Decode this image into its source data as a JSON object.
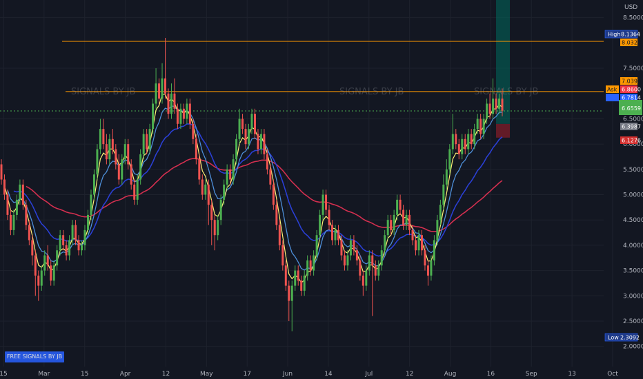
{
  "currency": "USD",
  "watermark": "SIGNALS BY JB",
  "free_signals_label": "FREE SIGNALS BY JB",
  "price_badges": {
    "high_label": "High",
    "high_value": "8.1364",
    "low_label": "Low",
    "low_value": "2.3092",
    "ask_label": "Ask",
    "ask_value": "6.8600",
    "bid_value": "6.7814",
    "last_value": "6.6559",
    "level_1": "8.0323",
    "level_2": "7.0398",
    "stop_value": "6.1276",
    "entry_value": "6.3987"
  },
  "colors": {
    "background": "#131722",
    "grid": "#1e222d",
    "bull": "#26a69a",
    "bull_green": "#4caf50",
    "bear": "#ef5350",
    "ema_fast": "#fff176",
    "ema_mid": "#4e8fd9",
    "ema_slow": "#2a3fd4",
    "ema_long": "#d32f4f",
    "hline": "#ff9800",
    "last_price": "#4caf50",
    "target_zone": "#00695c",
    "stop_zone": "#7f1d2a"
  },
  "chart_data": {
    "type": "candlestick",
    "y_unit": "USD",
    "ylim": [
      1.6,
      8.85
    ],
    "y_ticks": [
      2.0,
      2.5,
      3.0,
      3.5,
      4.0,
      4.5,
      5.0,
      5.5,
      6.0,
      6.5,
      7.5,
      8.5
    ],
    "x_tick_labels": [
      "15",
      "Mar",
      "15",
      "Apr",
      "12",
      "May",
      "17",
      "Jun",
      "14",
      "Jul",
      "12",
      "Aug",
      "16",
      "Sep",
      "13",
      "Oct"
    ],
    "horizontal_lines": [
      8.0323,
      7.0398
    ],
    "last_price": 6.6559,
    "high": 8.1364,
    "low": 2.3092,
    "position": {
      "entry": 6.3987,
      "target": 8.85,
      "stop": 6.1276
    },
    "candles": [
      [
        5.6,
        5.3,
        5.7,
        5.2
      ],
      [
        5.3,
        5.0,
        5.4,
        4.9
      ],
      [
        5.0,
        4.6,
        5.1,
        4.5
      ],
      [
        4.6,
        4.3,
        4.7,
        4.2
      ],
      [
        4.3,
        4.6,
        4.7,
        4.2
      ],
      [
        4.6,
        4.9,
        5.0,
        4.5
      ],
      [
        4.9,
        5.2,
        5.3,
        4.8
      ],
      [
        5.2,
        4.8,
        5.3,
        4.7
      ],
      [
        4.8,
        4.4,
        4.9,
        4.3
      ],
      [
        4.4,
        4.1,
        4.5,
        4.0
      ],
      [
        4.1,
        3.8,
        4.2,
        3.6
      ],
      [
        3.8,
        3.4,
        3.9,
        3.0
      ],
      [
        3.4,
        3.2,
        3.5,
        2.9
      ],
      [
        3.2,
        3.5,
        3.6,
        3.1
      ],
      [
        3.5,
        3.8,
        3.9,
        3.4
      ],
      [
        3.8,
        3.6,
        4.0,
        3.5
      ],
      [
        3.6,
        3.3,
        3.7,
        3.2
      ],
      [
        3.3,
        3.6,
        3.7,
        3.2
      ],
      [
        3.6,
        3.9,
        4.0,
        3.5
      ],
      [
        3.9,
        4.2,
        4.3,
        3.8
      ],
      [
        4.2,
        4.0,
        4.3,
        3.9
      ],
      [
        4.0,
        3.8,
        4.1,
        3.7
      ],
      [
        3.8,
        4.1,
        4.2,
        3.7
      ],
      [
        4.1,
        4.4,
        4.5,
        4.0
      ],
      [
        4.4,
        4.1,
        4.5,
        4.0
      ],
      [
        4.1,
        3.9,
        4.2,
        3.8
      ],
      [
        3.9,
        4.0,
        4.1,
        3.8
      ],
      [
        4.0,
        4.3,
        4.4,
        3.9
      ],
      [
        4.3,
        4.6,
        4.7,
        4.2
      ],
      [
        4.6,
        5.0,
        5.1,
        4.5
      ],
      [
        5.0,
        5.4,
        5.5,
        4.9
      ],
      [
        5.4,
        5.9,
        6.0,
        5.3
      ],
      [
        5.9,
        6.3,
        6.5,
        5.8
      ],
      [
        6.3,
        6.0,
        6.5,
        5.9
      ],
      [
        6.0,
        5.7,
        6.2,
        5.6
      ],
      [
        5.7,
        6.1,
        6.2,
        5.6
      ],
      [
        6.1,
        5.9,
        6.3,
        5.8
      ],
      [
        5.9,
        5.6,
        6.0,
        5.5
      ],
      [
        5.6,
        5.3,
        5.8,
        5.2
      ],
      [
        5.3,
        5.7,
        5.8,
        5.2
      ],
      [
        5.7,
        6.0,
        6.1,
        5.6
      ],
      [
        6.0,
        5.6,
        6.1,
        5.5
      ],
      [
        5.6,
        5.2,
        5.7,
        5.1
      ],
      [
        5.2,
        4.9,
        5.3,
        4.8
      ],
      [
        4.9,
        5.3,
        5.4,
        4.8
      ],
      [
        5.3,
        5.8,
        5.9,
        5.2
      ],
      [
        5.8,
        6.2,
        6.3,
        5.7
      ],
      [
        6.2,
        5.9,
        6.3,
        5.8
      ],
      [
        5.9,
        6.3,
        6.4,
        5.8
      ],
      [
        6.3,
        6.8,
        6.9,
        6.2
      ],
      [
        6.8,
        7.2,
        7.5,
        6.7
      ],
      [
        7.2,
        6.9,
        7.3,
        6.8
      ],
      [
        6.9,
        7.3,
        7.6,
        6.8
      ],
      [
        7.3,
        7.0,
        8.1,
        6.9
      ],
      [
        7.0,
        6.6,
        7.1,
        6.5
      ],
      [
        6.6,
        7.0,
        7.2,
        6.5
      ],
      [
        7.0,
        6.7,
        7.3,
        6.6
      ],
      [
        6.7,
        6.4,
        6.8,
        6.3
      ],
      [
        6.4,
        6.7,
        6.8,
        6.3
      ],
      [
        6.7,
        6.5,
        6.8,
        6.4
      ],
      [
        6.5,
        6.8,
        6.9,
        6.4
      ],
      [
        6.8,
        6.4,
        6.9,
        6.3
      ],
      [
        6.4,
        6.1,
        6.5,
        6.0
      ],
      [
        6.1,
        5.7,
        6.2,
        5.6
      ],
      [
        5.7,
        5.3,
        5.8,
        5.2
      ],
      [
        5.3,
        5.0,
        5.4,
        4.9
      ],
      [
        5.0,
        5.2,
        5.3,
        4.9
      ],
      [
        5.2,
        4.8,
        5.3,
        4.4
      ],
      [
        4.8,
        4.5,
        4.9,
        4.0
      ],
      [
        4.5,
        4.2,
        4.6,
        3.9
      ],
      [
        4.2,
        4.5,
        4.6,
        4.1
      ],
      [
        4.5,
        4.9,
        5.0,
        4.4
      ],
      [
        4.9,
        5.2,
        5.3,
        4.8
      ],
      [
        5.2,
        5.5,
        5.6,
        5.1
      ],
      [
        5.5,
        5.3,
        5.6,
        5.2
      ],
      [
        5.3,
        5.7,
        5.8,
        5.2
      ],
      [
        5.7,
        6.1,
        6.2,
        5.6
      ],
      [
        6.1,
        6.5,
        6.7,
        6.0
      ],
      [
        6.5,
        6.3,
        6.6,
        6.2
      ],
      [
        6.3,
        6.0,
        6.4,
        5.9
      ],
      [
        6.0,
        6.3,
        6.4,
        5.9
      ],
      [
        6.3,
        6.6,
        6.7,
        6.2
      ],
      [
        6.6,
        6.2,
        6.7,
        6.1
      ],
      [
        6.2,
        5.9,
        6.3,
        5.8
      ],
      [
        5.9,
        6.2,
        6.3,
        5.8
      ],
      [
        6.2,
        5.8,
        6.3,
        5.7
      ],
      [
        5.8,
        5.5,
        5.9,
        5.4
      ],
      [
        5.5,
        5.2,
        5.6,
        5.1
      ],
      [
        5.2,
        4.8,
        5.3,
        4.7
      ],
      [
        4.8,
        4.4,
        4.9,
        4.3
      ],
      [
        4.4,
        4.0,
        4.5,
        3.9
      ],
      [
        4.0,
        3.6,
        4.1,
        3.5
      ],
      [
        3.6,
        3.2,
        3.7,
        3.1
      ],
      [
        3.2,
        2.9,
        3.3,
        2.5
      ],
      [
        2.9,
        3.2,
        3.3,
        2.3
      ],
      [
        3.2,
        3.5,
        3.6,
        3.1
      ],
      [
        3.5,
        3.3,
        3.6,
        3.2
      ],
      [
        3.3,
        3.1,
        3.4,
        3.0
      ],
      [
        3.1,
        3.4,
        3.5,
        3.0
      ],
      [
        3.4,
        3.7,
        3.8,
        3.3
      ],
      [
        3.7,
        3.5,
        3.8,
        3.4
      ],
      [
        3.5,
        3.8,
        3.9,
        3.4
      ],
      [
        3.8,
        4.2,
        4.3,
        3.7
      ],
      [
        4.2,
        4.6,
        4.7,
        4.1
      ],
      [
        4.6,
        5.0,
        5.1,
        4.5
      ],
      [
        5.0,
        4.7,
        5.1,
        4.6
      ],
      [
        4.7,
        4.4,
        4.8,
        4.3
      ],
      [
        4.4,
        4.1,
        4.5,
        4.0
      ],
      [
        4.1,
        4.3,
        4.4,
        4.0
      ],
      [
        4.3,
        4.1,
        4.4,
        4.0
      ],
      [
        4.1,
        3.8,
        4.2,
        3.7
      ],
      [
        3.8,
        3.6,
        3.9,
        3.5
      ],
      [
        3.6,
        3.8,
        3.9,
        3.5
      ],
      [
        3.8,
        4.1,
        4.2,
        3.7
      ],
      [
        4.1,
        3.9,
        4.2,
        3.8
      ],
      [
        3.9,
        3.7,
        4.0,
        3.6
      ],
      [
        3.7,
        3.4,
        3.8,
        3.3
      ],
      [
        3.4,
        3.2,
        3.5,
        3.0
      ],
      [
        3.2,
        3.5,
        3.6,
        3.1
      ],
      [
        3.5,
        3.8,
        3.9,
        3.4
      ],
      [
        3.8,
        3.6,
        3.9,
        2.6
      ],
      [
        3.6,
        3.4,
        3.7,
        3.3
      ],
      [
        3.4,
        3.6,
        3.7,
        3.3
      ],
      [
        3.6,
        3.9,
        4.0,
        3.5
      ],
      [
        3.9,
        4.2,
        4.3,
        3.8
      ],
      [
        4.2,
        4.5,
        4.6,
        4.1
      ],
      [
        4.5,
        4.3,
        4.6,
        4.2
      ],
      [
        4.3,
        4.6,
        4.7,
        4.2
      ],
      [
        4.6,
        4.9,
        5.0,
        4.5
      ],
      [
        4.9,
        4.7,
        5.0,
        4.6
      ],
      [
        4.7,
        4.4,
        4.8,
        4.3
      ],
      [
        4.4,
        4.6,
        4.7,
        4.3
      ],
      [
        4.6,
        4.3,
        4.7,
        4.2
      ],
      [
        4.3,
        4.1,
        4.4,
        4.0
      ],
      [
        4.1,
        3.9,
        4.2,
        3.8
      ],
      [
        3.9,
        4.2,
        4.3,
        3.8
      ],
      [
        4.2,
        3.9,
        4.3,
        3.8
      ],
      [
        3.9,
        3.6,
        4.0,
        3.5
      ],
      [
        3.6,
        3.4,
        3.7,
        3.2
      ],
      [
        3.4,
        3.7,
        3.8,
        3.3
      ],
      [
        3.7,
        4.1,
        4.2,
        3.6
      ],
      [
        4.1,
        4.5,
        4.6,
        4.0
      ],
      [
        4.5,
        4.8,
        4.9,
        4.4
      ],
      [
        4.8,
        5.2,
        5.4,
        4.7
      ],
      [
        5.2,
        5.5,
        5.7,
        5.1
      ],
      [
        5.5,
        5.9,
        6.0,
        5.4
      ],
      [
        5.9,
        6.2,
        6.6,
        5.8
      ],
      [
        6.2,
        6.0,
        6.3,
        5.9
      ],
      [
        6.0,
        5.8,
        6.1,
        5.7
      ],
      [
        5.8,
        6.1,
        6.2,
        5.7
      ],
      [
        6.1,
        5.9,
        6.2,
        5.8
      ],
      [
        5.9,
        6.2,
        6.3,
        5.8
      ],
      [
        6.2,
        6.0,
        6.3,
        5.9
      ],
      [
        6.0,
        6.3,
        6.4,
        5.9
      ],
      [
        6.3,
        6.5,
        6.6,
        6.2
      ],
      [
        6.5,
        6.2,
        6.6,
        6.1
      ],
      [
        6.2,
        6.5,
        6.6,
        6.1
      ],
      [
        6.5,
        6.8,
        6.9,
        6.4
      ],
      [
        6.8,
        6.6,
        7.0,
        6.5
      ],
      [
        6.6,
        6.9,
        7.3,
        6.5
      ],
      [
        6.9,
        6.7,
        7.0,
        6.6
      ],
      [
        6.7,
        6.9,
        7.0,
        6.6
      ],
      [
        6.9,
        6.66,
        7.1,
        6.55
      ]
    ]
  }
}
